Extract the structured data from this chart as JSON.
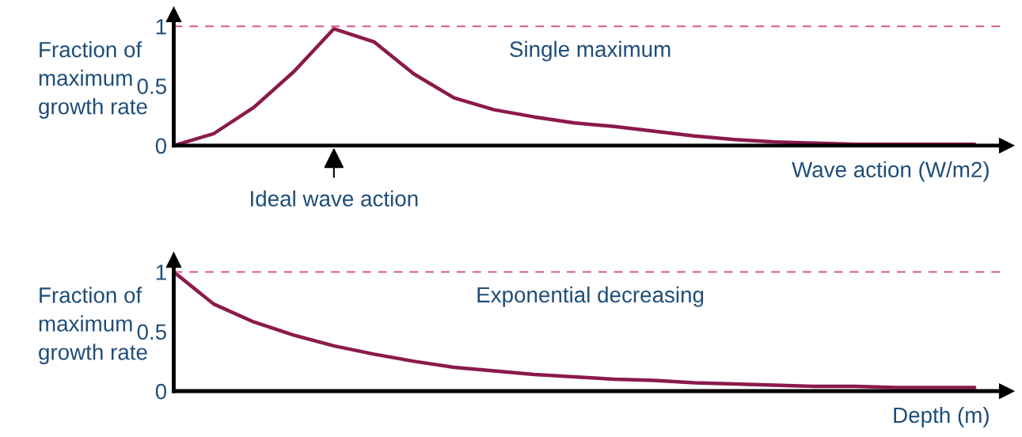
{
  "chart_data": [
    {
      "type": "line",
      "ylabel": "Fraction of\nmaximum\ngrowth rate",
      "xlabel": "Wave action (W/m2)",
      "annotations": [
        "Single maximum",
        "Ideal wave action"
      ],
      "categories": [
        null,
        null,
        null,
        null,
        null,
        null,
        null,
        null,
        null,
        null,
        null,
        null,
        null,
        null,
        null,
        null,
        null,
        null,
        null,
        null,
        null
      ],
      "series": [
        {
          "color": "#8b1a4a",
          "values": [
            0,
            0.1,
            0.32,
            0.62,
            0.98,
            0.87,
            0.6,
            0.4,
            0.3,
            0.24,
            0.19,
            0.16,
            0.12,
            0.08,
            0.05,
            0.03,
            0.02,
            0.01,
            0.01,
            0.01,
            0.01
          ]
        }
      ],
      "ylim": [
        0,
        1.1
      ],
      "yticks": [
        0,
        0.5,
        1
      ],
      "grid": false,
      "legend": false,
      "marker": "none",
      "line_style": "solid",
      "ref_lines": [
        {
          "axis": "y",
          "value": 1,
          "label": null,
          "color": "#d9578a",
          "line_style": "dashed"
        }
      ]
    },
    {
      "type": "line",
      "ylabel": "Fraction of\nmaximum\ngrowth rate",
      "xlabel": "Depth (m)",
      "annotations": [
        "Exponential decreasing"
      ],
      "categories": [
        null,
        null,
        null,
        null,
        null,
        null,
        null,
        null,
        null,
        null,
        null,
        null,
        null,
        null,
        null,
        null,
        null,
        null,
        null,
        null,
        null
      ],
      "series": [
        {
          "color": "#8b1a4a",
          "values": [
            1.0,
            0.73,
            0.58,
            0.47,
            0.38,
            0.31,
            0.25,
            0.2,
            0.17,
            0.14,
            0.12,
            0.1,
            0.09,
            0.07,
            0.06,
            0.05,
            0.04,
            0.04,
            0.03,
            0.03,
            0.03
          ]
        }
      ],
      "ylim": [
        0,
        1.1
      ],
      "yticks": [
        0,
        0.5,
        1
      ],
      "grid": false,
      "legend": false,
      "marker": "none",
      "line_style": "solid",
      "ref_lines": [
        {
          "axis": "y",
          "value": 1,
          "label": null,
          "color": "#d9578a",
          "line_style": "dashed"
        }
      ]
    }
  ]
}
